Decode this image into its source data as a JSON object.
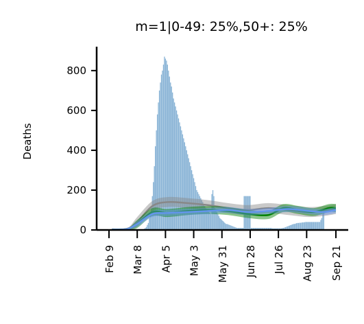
{
  "chart_data": {
    "type": "bar",
    "title": "m=1|0-49: 25%,50+: 25%",
    "xlabel": "",
    "ylabel": "Deaths",
    "x_start": "2020-01-28",
    "ylim": [
      0,
      920
    ],
    "yticks": [
      0,
      200,
      400,
      600,
      800
    ],
    "xticks": [
      {
        "day": 12,
        "label": "Feb 9"
      },
      {
        "day": 40,
        "label": "Mar 8"
      },
      {
        "day": 68,
        "label": "Apr 5"
      },
      {
        "day": 96,
        "label": "May 3"
      },
      {
        "day": 124,
        "label": "May 31"
      },
      {
        "day": 152,
        "label": "Jun 28"
      },
      {
        "day": 180,
        "label": "Jul 26"
      },
      {
        "day": 208,
        "label": "Aug 23"
      },
      {
        "day": 237,
        "label": "Sep 21"
      }
    ],
    "bar_color": "#8ab4d6",
    "observed_daily_deaths": {
      "start_day": 47,
      "values": [
        6,
        10,
        15,
        25,
        35,
        60,
        90,
        120,
        170,
        240,
        320,
        420,
        500,
        580,
        640,
        700,
        740,
        780,
        800,
        830,
        870,
        860,
        850,
        830,
        800,
        770,
        740,
        720,
        690,
        660,
        640,
        620,
        600,
        580,
        560,
        540,
        520,
        500,
        480,
        460,
        440,
        420,
        400,
        380,
        360,
        340,
        320,
        300,
        280,
        260,
        240,
        220,
        200,
        190,
        180,
        170,
        160,
        150,
        140,
        130,
        120,
        110,
        100,
        95,
        90,
        85,
        80,
        180,
        200,
        170,
        110,
        100,
        90,
        80,
        70,
        60,
        55,
        50,
        45,
        40,
        35,
        30,
        30,
        28,
        26,
        24,
        22,
        20,
        18,
        16,
        14,
        12,
        10,
        10,
        10,
        10,
        10,
        10,
        10,
        170,
        170,
        170,
        170,
        170,
        170,
        170,
        10,
        10,
        10,
        10,
        10,
        10,
        10,
        10,
        10,
        10,
        10,
        10,
        10,
        10,
        10,
        10,
        10,
        10,
        10,
        10,
        10,
        8,
        8,
        8,
        8,
        8,
        8,
        8,
        8,
        8,
        8,
        10,
        10,
        12,
        14,
        16,
        18,
        20,
        22,
        24,
        26,
        28,
        30,
        30,
        32,
        34,
        35,
        35,
        36,
        36,
        37,
        38,
        38,
        39,
        40,
        40,
        40,
        40,
        40,
        40,
        40,
        40,
        40,
        40,
        40,
        40,
        40,
        40,
        40,
        50,
        60,
        80,
        90
      ]
    },
    "model_series": [
      {
        "color": "#888888",
        "points": [
          [
            15,
            3
          ],
          [
            30,
            6
          ],
          [
            40,
            40
          ],
          [
            55,
            120
          ],
          [
            70,
            140
          ],
          [
            90,
            135
          ],
          [
            110,
            125
          ],
          [
            130,
            110
          ],
          [
            150,
            100
          ],
          [
            170,
            110
          ],
          [
            190,
            100
          ],
          [
            210,
            90
          ],
          [
            225,
            95
          ],
          [
            237,
            105
          ]
        ],
        "band": 25
      },
      {
        "color": "#008000",
        "points": [
          [
            15,
            2
          ],
          [
            30,
            5
          ],
          [
            40,
            30
          ],
          [
            55,
            90
          ],
          [
            70,
            85
          ],
          [
            90,
            95
          ],
          [
            110,
            100
          ],
          [
            130,
            95
          ],
          [
            150,
            80
          ],
          [
            170,
            75
          ],
          [
            185,
            110
          ],
          [
            200,
            100
          ],
          [
            215,
            90
          ],
          [
            230,
            110
          ],
          [
            237,
            110
          ]
        ],
        "band": 20
      },
      {
        "color": "#6495ed",
        "points": [
          [
            15,
            2
          ],
          [
            30,
            5
          ],
          [
            40,
            30
          ],
          [
            55,
            80
          ],
          [
            70,
            85
          ],
          [
            90,
            90
          ],
          [
            110,
            95
          ],
          [
            130,
            100
          ],
          [
            150,
            90
          ],
          [
            170,
            95
          ],
          [
            190,
            105
          ],
          [
            210,
            95
          ],
          [
            225,
            90
          ],
          [
            237,
            100
          ]
        ],
        "band": 15
      }
    ]
  }
}
